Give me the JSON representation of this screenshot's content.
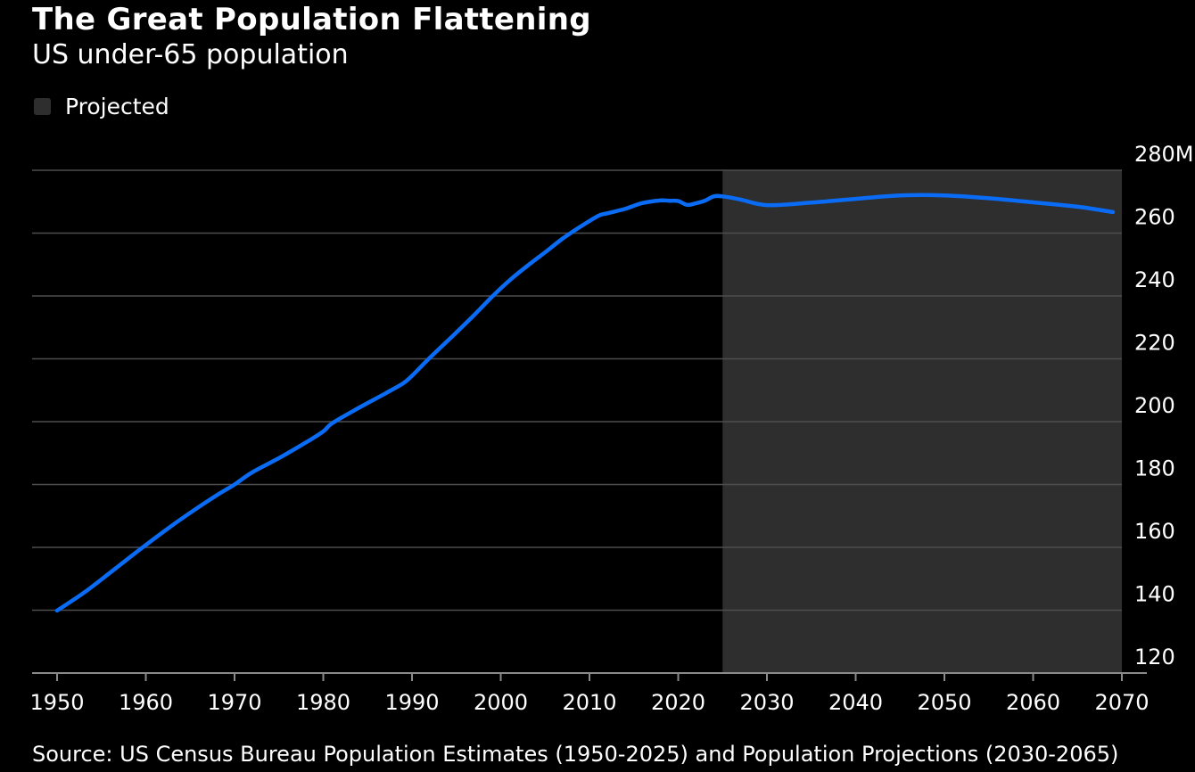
{
  "header": {
    "title": "The Great Population Flattening",
    "subtitle": "US under-65 population"
  },
  "legend": {
    "label": "Projected"
  },
  "footer": {
    "source": "Source: US Census Bureau Population Estimates (1950-2025) and Population Projections (2030-2065)"
  },
  "colors": {
    "background": "#000000",
    "line": "#0a6cf5",
    "projected_band": "#2e2e2e",
    "gridline": "#4d4d4d",
    "text": "#ffffff"
  },
  "chart_data": {
    "type": "line",
    "title": "The Great Population Flattening",
    "subtitle": "US under-65 population",
    "xlabel": "",
    "ylabel": "",
    "xlim": [
      1950,
      2070
    ],
    "ylim": [
      120,
      280
    ],
    "x_ticks": [
      1950,
      1960,
      1970,
      1980,
      1990,
      2000,
      2010,
      2020,
      2030,
      2040,
      2050,
      2060,
      2070
    ],
    "x_tick_labels": [
      "1950",
      "1960",
      "1970",
      "1980",
      "1990",
      "2000",
      "2010",
      "2020",
      "2030",
      "2040",
      "2050",
      "2060",
      "2070"
    ],
    "y_ticks": [
      120,
      140,
      160,
      180,
      200,
      220,
      240,
      260,
      280
    ],
    "y_tick_labels": [
      "120",
      "140",
      "160",
      "180",
      "200",
      "220",
      "240",
      "260",
      "280M"
    ],
    "y_axis_side": "right",
    "grid": true,
    "projected_range": [
      2025,
      2070
    ],
    "series": [
      {
        "color": "#0a6cf5",
        "x": [
          1950,
          1953,
          1956,
          1959,
          1962,
          1965,
          1968,
          1970,
          1972,
          1975,
          1978,
          1980,
          1981,
          1984,
          1987,
          1989,
          1990,
          1992,
          1995,
          1997,
          1999,
          2001,
          2003,
          2005,
          2007,
          2009,
          2011,
          2012,
          2014,
          2016,
          2018,
          2019,
          2020,
          2021,
          2022,
          2023,
          2024,
          2025,
          2027,
          2030,
          2035,
          2040,
          2045,
          2050,
          2055,
          2060,
          2065,
          2069
        ],
        "y": [
          139.9,
          145.5,
          152.0,
          158.6,
          165.0,
          171.0,
          176.6,
          180.0,
          183.9,
          188.4,
          193.3,
          196.9,
          199.5,
          204.4,
          209.0,
          212.2,
          214.6,
          220.3,
          228.4,
          233.9,
          239.7,
          245.0,
          249.6,
          253.9,
          258.3,
          262.1,
          265.5,
          266.3,
          267.7,
          269.6,
          270.4,
          270.3,
          270.2,
          269.0,
          269.5,
          270.3,
          271.7,
          271.7,
          270.7,
          268.9,
          269.7,
          270.9,
          272.0,
          272.0,
          271.1,
          269.8,
          268.4,
          266.7
        ]
      }
    ]
  }
}
